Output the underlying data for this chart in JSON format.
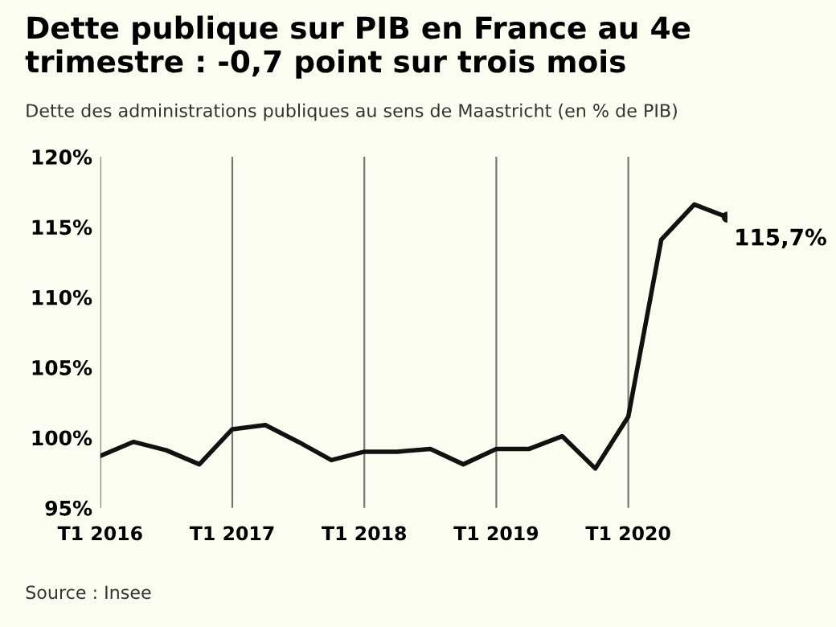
{
  "chart_data": {
    "type": "line",
    "title": "Dette publique sur PIB en France au 4e trimestre : -0,7 point sur trois mois",
    "subtitle": "Dette des administrations publiques au sens de Maastricht (en % de PIB)",
    "categories": [
      "T1 2016",
      null,
      null,
      null,
      "T1 2017",
      null,
      null,
      null,
      "T1 2018",
      null,
      null,
      null,
      "T1 2019",
      null,
      null,
      null,
      "T1 2020",
      null,
      null,
      null
    ],
    "series": [
      {
        "color": "#111111",
        "values": [
          98.7,
          99.7,
          99.1,
          98.1,
          100.6,
          100.9,
          99.7,
          98.4,
          99.0,
          99.0,
          99.2,
          98.1,
          99.2,
          99.2,
          100.1,
          97.8,
          101.5,
          114.1,
          116.6,
          115.7
        ],
        "value_labels": [
          null,
          null,
          null,
          null,
          null,
          null,
          null,
          null,
          null,
          null,
          null,
          null,
          null,
          null,
          null,
          null,
          null,
          null,
          null,
          "115,7%"
        ]
      }
    ],
    "ylim": [
      95,
      120
    ],
    "yticks": [
      {
        "value": 95,
        "label": "95%"
      },
      {
        "value": 100,
        "label": "100%"
      },
      {
        "value": 105,
        "label": "105%"
      },
      {
        "value": 110,
        "label": "110%"
      },
      {
        "value": 115,
        "label": "115%"
      },
      {
        "value": 120,
        "label": "120%"
      }
    ],
    "grid": "x",
    "annotations": [
      "Source : Insee"
    ]
  }
}
